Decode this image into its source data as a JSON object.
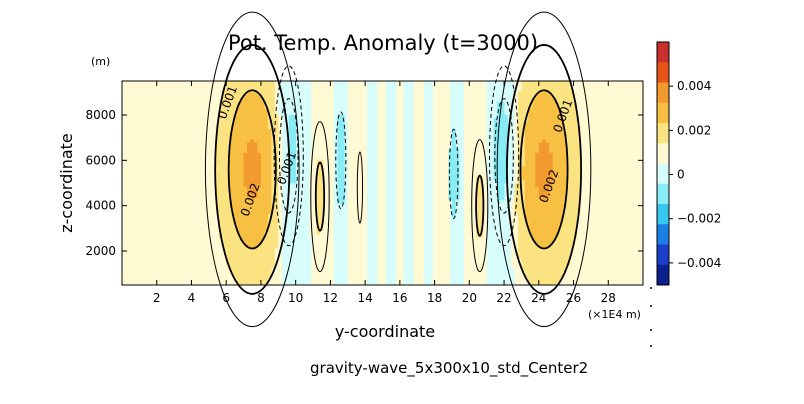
{
  "chart_data": {
    "type": "contour",
    "title": "Pot. Temp. Anomaly (t=3000)",
    "xlabel": "y-coordinate",
    "ylabel": "z-coordinate",
    "x_unit": "(×1E4 m)",
    "y_unit": "(m)",
    "footer": "gravity-wave_5x300x10_std_Center2",
    "xlim": [
      0,
      30
    ],
    "ylim": [
      500,
      9500
    ],
    "x_ticks": [
      2,
      4,
      6,
      8,
      10,
      12,
      14,
      16,
      18,
      20,
      22,
      24,
      26,
      28
    ],
    "x_tick_labels": [
      "2",
      "4",
      "6",
      "8",
      "10",
      "12",
      "14",
      "16",
      "18",
      "20",
      "22",
      "24",
      "26",
      "28"
    ],
    "y_ticks": [
      2000,
      4000,
      6000,
      8000
    ],
    "y_tick_labels": [
      "2000",
      "4000",
      "6000",
      "8000"
    ],
    "contour_labels": [
      {
        "text": "0.001",
        "x": 6.3,
        "y": 8500
      },
      {
        "text": "0.002",
        "x": 7.6,
        "y": 4200
      },
      {
        "text": "0.001",
        "x": 9.7,
        "y": 5600
      },
      {
        "text": "0.002",
        "x": 24.8,
        "y": 4800
      },
      {
        "text": "0.001",
        "x": 25.6,
        "y": 7900
      }
    ],
    "colorbar": {
      "levels": [
        0.005,
        0.004,
        0.003,
        0.002,
        0.001,
        0.0005,
        -0.0005,
        -0.001,
        -0.002,
        -0.003,
        -0.004,
        -0.005
      ],
      "colors": [
        "#c8312b",
        "#e9541a",
        "#f29a2e",
        "#f7c043",
        "#fbe382",
        "#fffad4",
        "#d7fcfc",
        "#88ecf7",
        "#37c6ef",
        "#1b7fe4",
        "#1b3fc8",
        "#0b1f8f"
      ],
      "tick_labels": [
        "0.004",
        "0.002",
        "0",
        "−0.002",
        "−0.004"
      ],
      "tick_values": [
        0.004,
        0.002,
        0,
        -0.002,
        -0.004
      ]
    },
    "features": [
      {
        "kind": "positive",
        "x": 7.5,
        "z": 5600,
        "amp": 0.0032,
        "rx": 1.4,
        "rz": 3600
      },
      {
        "kind": "positive",
        "x": 24.3,
        "z": 5600,
        "amp": 0.0032,
        "rx": 1.4,
        "rz": 3600
      },
      {
        "kind": "negative",
        "x": 9.6,
        "z": 6200,
        "amp": -0.0016,
        "rx": 0.55,
        "rz": 2600
      },
      {
        "kind": "negative",
        "x": 22.0,
        "z": 6200,
        "amp": -0.0016,
        "rx": 0.55,
        "rz": 2600
      },
      {
        "kind": "positive",
        "x": 11.4,
        "z": 4400,
        "amp": 0.0012,
        "rx": 0.4,
        "rz": 2500
      },
      {
        "kind": "positive",
        "x": 20.6,
        "z": 4000,
        "amp": 0.0012,
        "rx": 0.35,
        "rz": 2200
      },
      {
        "kind": "negative",
        "x": 12.6,
        "z": 6000,
        "amp": -0.0008,
        "rx": 0.3,
        "rz": 2200
      },
      {
        "kind": "negative",
        "x": 19.1,
        "z": 5400,
        "amp": -0.0007,
        "rx": 0.3,
        "rz": 2400
      },
      {
        "kind": "positive",
        "x": 13.7,
        "z": 4800,
        "amp": 0.0006,
        "rx": 0.25,
        "rz": 2600
      }
    ],
    "bands": [
      {
        "x0": 8.9,
        "x1": 10.9,
        "level": -0.0005
      },
      {
        "x0": 12.2,
        "x1": 13.0,
        "level": -0.0005
      },
      {
        "x0": 14.1,
        "x1": 14.7,
        "level": -0.0005
      },
      {
        "x0": 15.2,
        "x1": 15.8,
        "level": -0.0005
      },
      {
        "x0": 16.2,
        "x1": 16.8,
        "level": -0.0005
      },
      {
        "x0": 17.4,
        "x1": 17.9,
        "level": -0.0005
      },
      {
        "x0": 18.9,
        "x1": 19.7,
        "level": -0.0005
      },
      {
        "x0": 21.0,
        "x1": 22.9,
        "level": -0.0005
      }
    ]
  }
}
